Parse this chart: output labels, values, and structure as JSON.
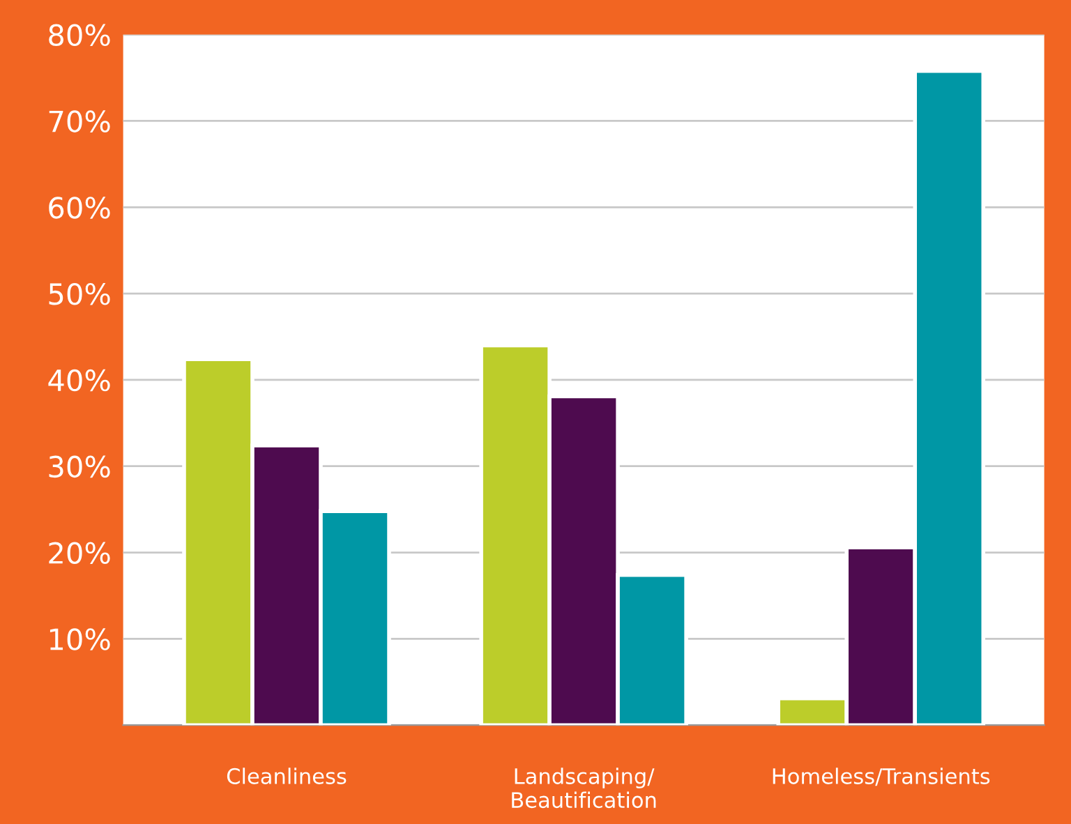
{
  "chart_data": {
    "type": "bar",
    "categories": [
      "Cleanliness",
      "Landscaping/\nBeautification",
      "Homeless/Transients"
    ],
    "series": [
      {
        "color": "#bccd2a",
        "values": [
          42.4,
          44.0,
          3.1
        ]
      },
      {
        "color": "#4e0b4f",
        "values": [
          32.4,
          38.1,
          20.6
        ]
      },
      {
        "color": "#0097a5",
        "values": [
          24.8,
          17.4,
          75.8
        ]
      }
    ],
    "ylim": [
      0,
      80
    ],
    "yticks": [
      {
        "value": 0,
        "label": null
      },
      {
        "value": 10,
        "label": "10%"
      },
      {
        "value": 20,
        "label": "20%"
      },
      {
        "value": 30,
        "label": "30%"
      },
      {
        "value": 40,
        "label": "40%"
      },
      {
        "value": 50,
        "label": "50%"
      },
      {
        "value": 60,
        "label": "60%"
      },
      {
        "value": 70,
        "label": "70%"
      },
      {
        "value": 80,
        "label": "80%"
      }
    ],
    "grid": "y",
    "legend": false
  }
}
